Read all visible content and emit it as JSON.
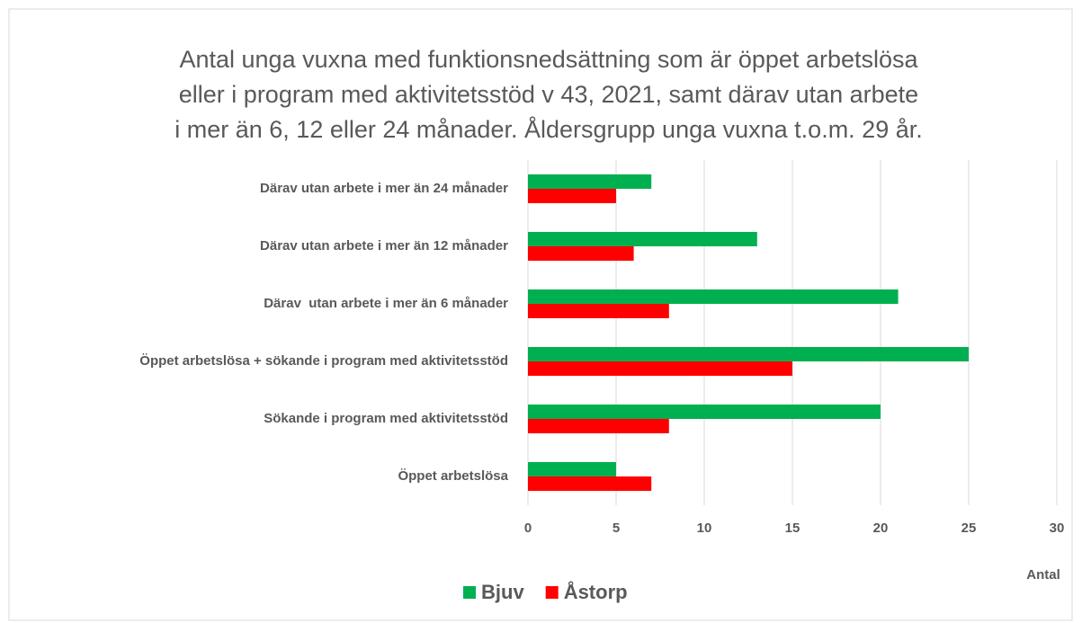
{
  "chart_data": {
    "type": "hbar",
    "title": [
      "Antal unga vuxna med funktionsnedsättning som är öppet arbetslösa",
      "eller i program med aktivitetsstöd v 43, 2021, samt därav utan arbete",
      "i mer än 6, 12 eller 24 månader. Åldersgrupp unga vuxna t.o.m. 29 år."
    ],
    "categories": [
      "Därav utan arbete i mer än 24 månader",
      "Därav utan arbete i mer än 12 månader",
      "Därav  utan arbete i mer än 6 månader",
      "Öppet arbetslösa + sökande i program med aktivitetsstöd",
      "Sökande i program med aktivitetsstöd",
      "Öppet arbetslösa"
    ],
    "series": [
      {
        "name": "Bjuv",
        "color": "#00b050",
        "values": [
          7,
          13,
          21,
          25,
          20,
          5
        ]
      },
      {
        "name": "Åstorp",
        "color": "#ff0000",
        "values": [
          5,
          6,
          8,
          15,
          8,
          7
        ]
      }
    ],
    "xlabel": "Antal",
    "xlim": [
      0,
      30
    ],
    "xticks": [
      0,
      5,
      10,
      15,
      20,
      25,
      30
    ],
    "grid": true,
    "legend": "bottom"
  }
}
